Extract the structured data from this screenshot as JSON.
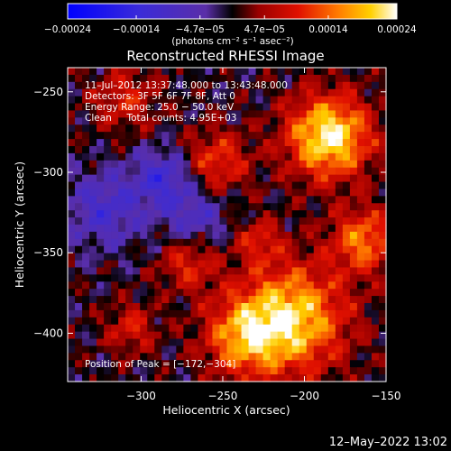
{
  "chart_data": {
    "type": "heatmap",
    "title": "Reconstructed RHESSI Image",
    "xlabel": "Heliocentric X (arcsec)",
    "ylabel": "Heliocentric Y (arcsec)",
    "xlim": [
      -345,
      -150
    ],
    "ylim": [
      -430,
      -235
    ],
    "xticks": [
      -300,
      -250,
      -200,
      -150
    ],
    "xtick_labels": [
      "−300",
      "−250",
      "−200",
      "−150"
    ],
    "yticks": [
      -250,
      -300,
      -350,
      -400
    ],
    "ytick_labels": [
      "−250",
      "−300",
      "−350",
      "−400"
    ],
    "colorbar": {
      "min": -0.00024,
      "max": 0.00024,
      "ticks": [
        -0.00024,
        -0.00014,
        -4.7e-05,
        4.7e-05,
        0.00014,
        0.00024
      ],
      "tick_labels": [
        "−0.00024",
        "−0.00014",
        "−4.7e−05",
        "4.7e−05",
        "0.00014",
        "0.00024"
      ],
      "unit_label": "(photons cm⁻² s⁻¹ asec⁻²)"
    },
    "annotations": {
      "time_range": "11–Jul–2012 13:37:48.000 to 13:43:48.000",
      "detectors": "Detectors: 3F 5F 6F 7F 8F, Att 0",
      "energy": "Energy Range: 25.0 − 50.0 keV",
      "clean": "Clean     Total counts: 4.95E+03",
      "peak": "Position of Peak = [−172,−304]"
    },
    "peak_position": [
      -172,
      -304
    ],
    "grid": false
  },
  "footer": {
    "timestamp": "12–May–2022 13:02"
  }
}
